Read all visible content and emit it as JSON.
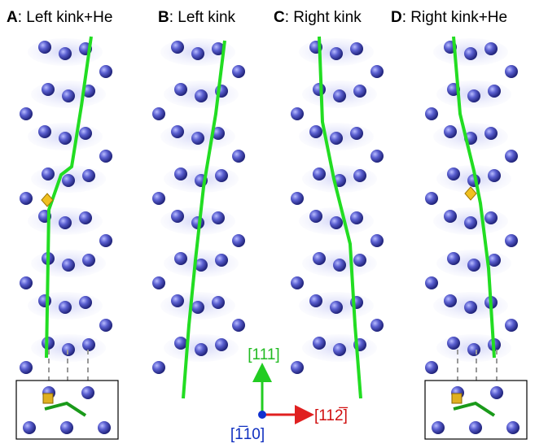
{
  "panels": [
    {
      "letter": "A",
      "label": ": Left kink+He"
    },
    {
      "letter": "B",
      "label": ": Left kink"
    },
    {
      "letter": "C",
      "label": ": Right kink"
    },
    {
      "letter": "D",
      "label": ": Right kink+He"
    }
  ],
  "axes": {
    "up": "[111]",
    "right": "[112̅]",
    "out": "[1̅10]"
  }
}
